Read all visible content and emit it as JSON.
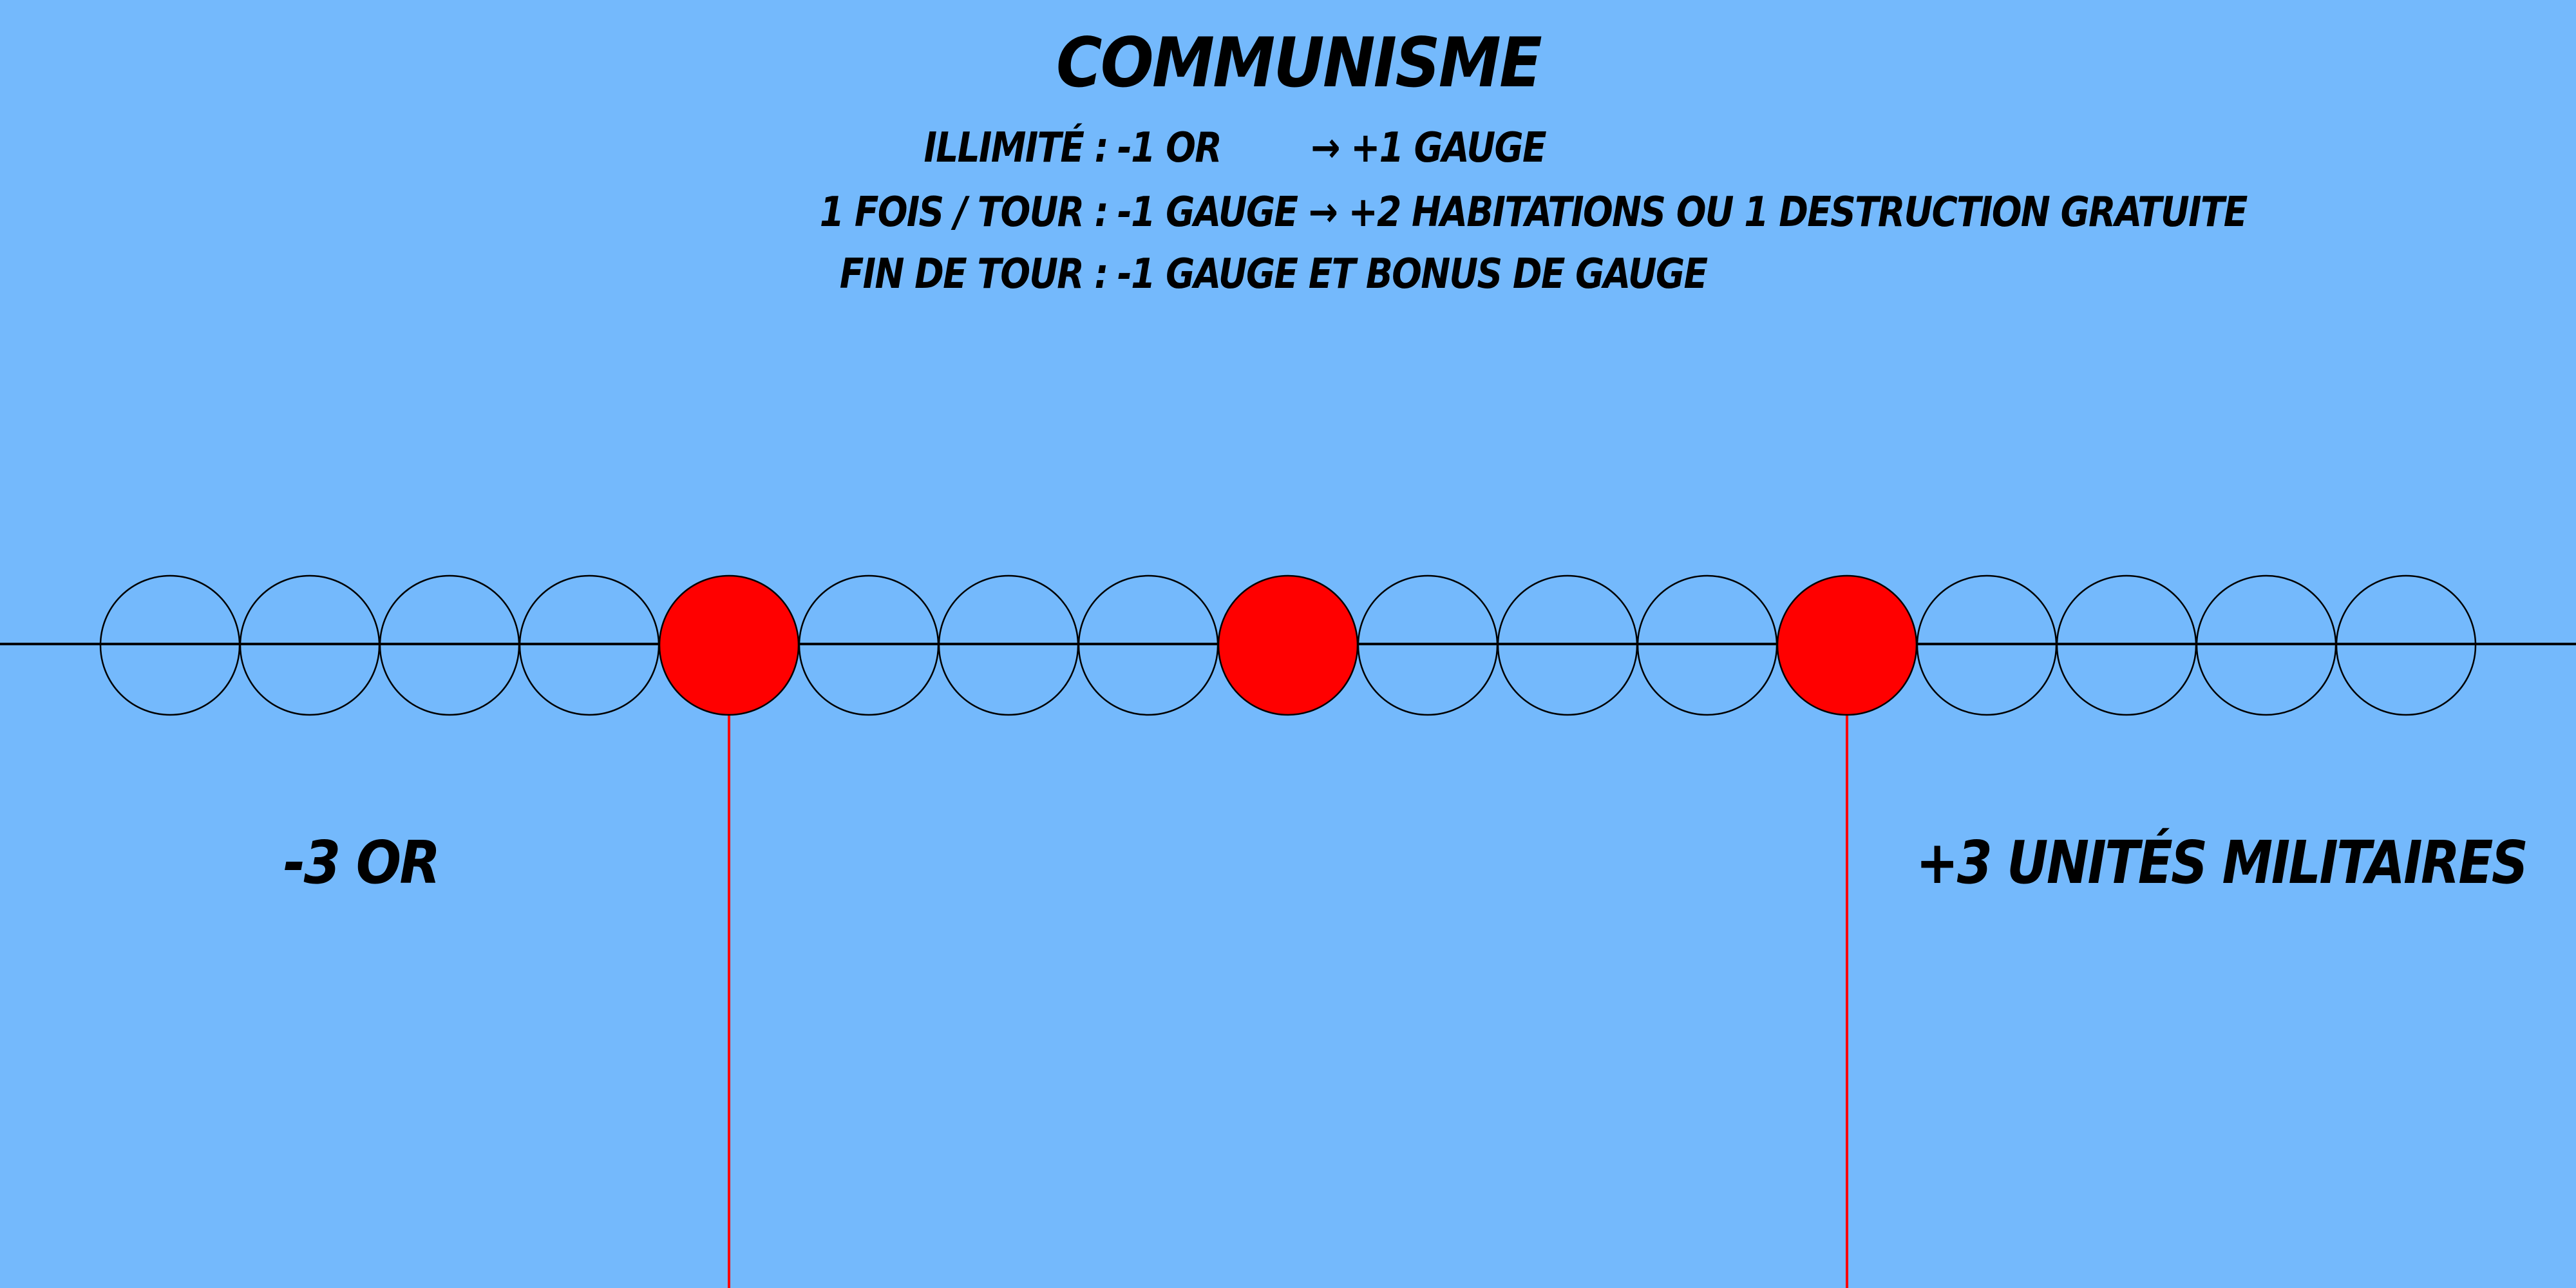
{
  "title": "COMMUNISME",
  "rules": [
    {
      "label": "ILLIMITÉ :",
      "text": "-1 OR        → +1 GAUGE"
    },
    {
      "label": "1 FOIS / TOUR :",
      "text": "-1 GAUGE → +2 HABITATIONS OU 1 DESTRUCTION GRATUITE"
    },
    {
      "label": "FIN DE TOUR :",
      "text": "-1 GAUGE ET BONUS DE GAUGE"
    }
  ],
  "gauge": {
    "slot_count": 17,
    "highlighted_slots": [
      5,
      9,
      13
    ],
    "slot_fill": "#ff0000",
    "line_color": "#000000",
    "marker_line_color": "#ff0000",
    "marker_slots": [
      5,
      13
    ]
  },
  "effects": {
    "left": "-3 OR",
    "right": "+3 UNITÉS MILITAIRES"
  },
  "colors": {
    "background": "#74b9fc",
    "highlight": "#ff0000"
  }
}
